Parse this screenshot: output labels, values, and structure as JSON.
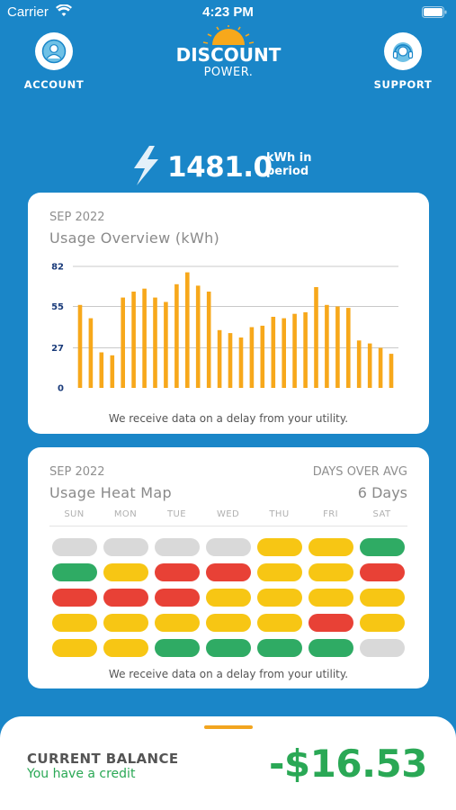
{
  "status": {
    "carrier": "Carrier",
    "time": "4:23 PM"
  },
  "header": {
    "account_label": "ACCOUNT",
    "support_label": "SUPPORT",
    "logo_line1": "DISCOUNT",
    "logo_line2": "POWER.",
    "brand_color": "#1a86c8"
  },
  "total": {
    "value": "1481.0",
    "unit_line1": "kWh in",
    "unit_line2": "period"
  },
  "usage_card": {
    "month": "SEP 2022",
    "title": "Usage Overview (kWh)",
    "note": "We receive data on a delay from your utility."
  },
  "chart_data": {
    "type": "bar",
    "title": "Usage Overview (kWh)",
    "subtitle": "SEP 2022",
    "ylim": [
      0,
      82
    ],
    "ticks": [
      "82",
      "55",
      "27",
      "0"
    ],
    "tick_values": [
      82,
      55,
      27,
      0
    ],
    "grid": true,
    "color": "#f7a81b",
    "values": [
      56,
      47,
      24,
      22,
      61,
      65,
      67,
      61,
      58,
      70,
      78,
      69,
      65,
      39,
      37,
      34,
      41,
      42,
      48,
      47,
      50,
      51,
      68,
      56,
      55,
      54,
      32,
      30,
      27,
      23
    ]
  },
  "heat_card": {
    "month": "SEP 2022",
    "title": "Usage Heat Map",
    "side_label": "DAYS OVER AVG",
    "side_value": "6 Days",
    "days": [
      "SUN",
      "MON",
      "TUE",
      "WED",
      "THU",
      "FRI",
      "SAT"
    ],
    "colors": {
      "none": "#d9d9d9",
      "low": "#2fab64",
      "mid": "#f7c614",
      "high": "#e84136"
    },
    "grid": [
      [
        "none",
        "none",
        "none",
        "none",
        "mid",
        "mid",
        "low"
      ],
      [
        "low",
        "mid",
        "high",
        "high",
        "mid",
        "mid",
        "high"
      ],
      [
        "high",
        "high",
        "high",
        "mid",
        "mid",
        "mid",
        "mid"
      ],
      [
        "mid",
        "mid",
        "mid",
        "mid",
        "mid",
        "high",
        "mid"
      ],
      [
        "mid",
        "mid",
        "low",
        "low",
        "low",
        "low",
        "none"
      ]
    ],
    "note": "We receive data on a delay from your utility."
  },
  "balance": {
    "label": "CURRENT BALANCE",
    "sub": "You have a credit",
    "value": "-$16.53"
  }
}
